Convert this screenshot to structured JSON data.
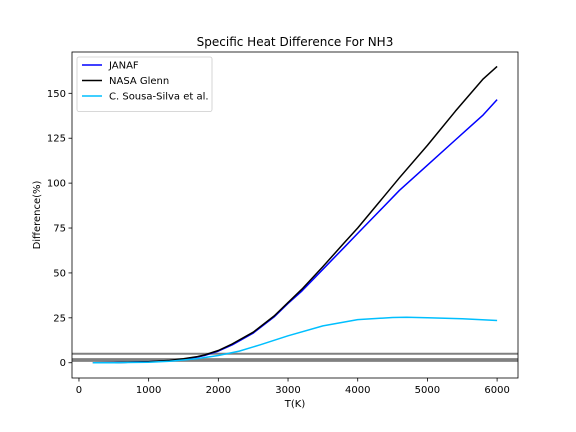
{
  "chart_data": {
    "type": "line",
    "title": "Specific Heat Difference For NH3",
    "xlabel": "T(K)",
    "ylabel": "Difference(%)",
    "xlim": [
      -100,
      6300
    ],
    "ylim": [
      -8.5,
      173
    ],
    "xticks": [
      0,
      1000,
      2000,
      3000,
      4000,
      5000,
      6000
    ],
    "yticks": [
      0,
      25,
      50,
      75,
      100,
      125,
      150
    ],
    "grid": false,
    "legend_position": "top-left",
    "reference_lines": [
      {
        "y": 1,
        "color": "#808080"
      },
      {
        "y": 2,
        "color": "#808080"
      },
      {
        "y": 5,
        "color": "#808080"
      }
    ],
    "series": [
      {
        "name": "JANAF",
        "color": "#0000ff",
        "x": [
          200,
          500,
          1000,
          1300,
          1500,
          1700,
          1800,
          2000,
          2200,
          2500,
          2800,
          3000,
          3200,
          3500,
          3800,
          4000,
          4300,
          4600,
          5000,
          5400,
          5800,
          6000
        ],
        "y": [
          0,
          0.1,
          0.5,
          1.2,
          2,
          3.2,
          4,
          6.5,
          10,
          16.5,
          25.5,
          33,
          40,
          52,
          64,
          72,
          84,
          96,
          110,
          124,
          138,
          146.5
        ]
      },
      {
        "name": "NASA Glenn",
        "color": "#000000",
        "x": [
          200,
          500,
          1000,
          1300,
          1500,
          1700,
          1800,
          2000,
          2200,
          2500,
          2800,
          3000,
          3200,
          3500,
          3800,
          4000,
          4300,
          4600,
          5000,
          5400,
          5800,
          6000
        ],
        "y": [
          0,
          0.1,
          0.6,
          1.3,
          2.2,
          3.4,
          4.3,
          6.8,
          10.5,
          17,
          26,
          33.5,
          41,
          53.5,
          66.5,
          75,
          89,
          103,
          121,
          140,
          158,
          165
        ]
      },
      {
        "name": "C. Sousa-Silva et al.",
        "color": "#00bfff",
        "x": [
          200,
          500,
          1000,
          1300,
          1500,
          1700,
          2000,
          2300,
          2600,
          3000,
          3500,
          4000,
          4500,
          4700,
          5000,
          5500,
          6000
        ],
        "y": [
          0,
          0,
          0.3,
          0.8,
          1.5,
          2.3,
          4,
          6.5,
          10,
          15,
          20.5,
          24,
          25.2,
          25.3,
          25,
          24.5,
          23.5
        ]
      }
    ]
  }
}
